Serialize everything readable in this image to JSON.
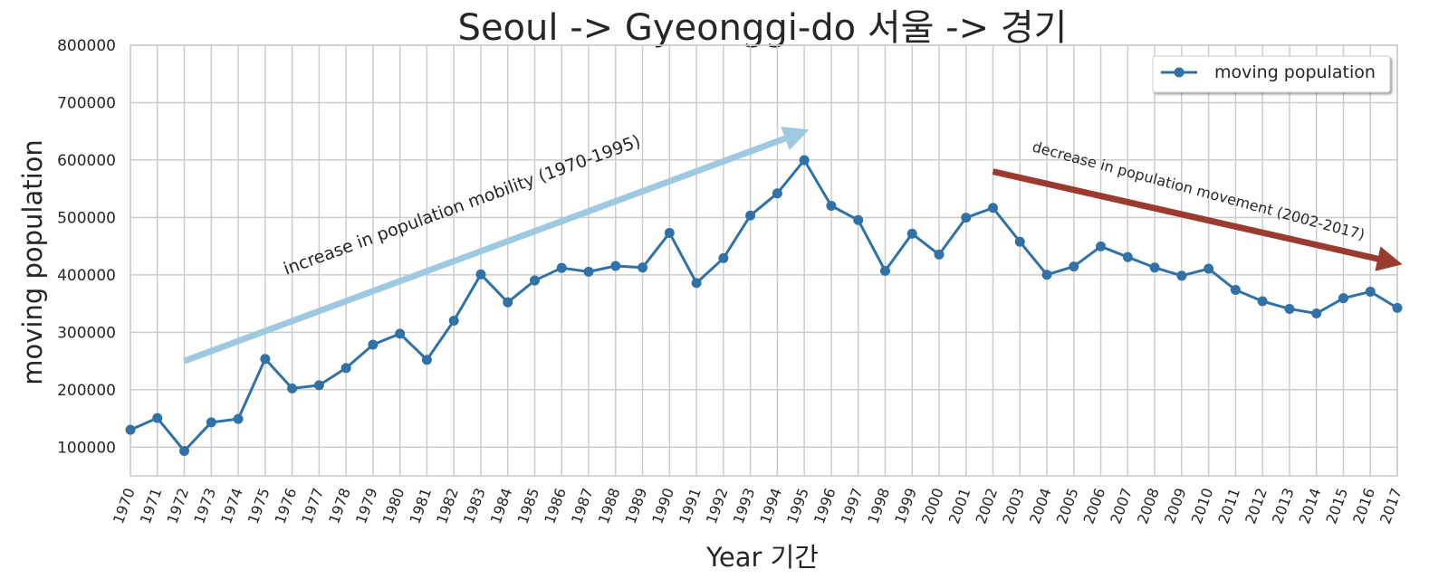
{
  "chart_data": {
    "type": "line",
    "title": "Seoul -> Gyeonggi-do 서울 -> 경기",
    "xlabel": "Year 기간",
    "ylabel": "moving population",
    "ylim": [
      50000,
      800000
    ],
    "yticks": [
      100000,
      200000,
      300000,
      400000,
      500000,
      600000,
      700000,
      800000
    ],
    "x": [
      "1970",
      "1971",
      "1972",
      "1973",
      "1974",
      "1975",
      "1976",
      "1977",
      "1978",
      "1979",
      "1980",
      "1981",
      "1982",
      "1983",
      "1984",
      "1985",
      "1986",
      "1987",
      "1988",
      "1989",
      "1990",
      "1991",
      "1992",
      "1993",
      "1994",
      "1995",
      "1996",
      "1997",
      "1998",
      "1999",
      "2000",
      "2001",
      "2002",
      "2003",
      "2004",
      "2005",
      "2006",
      "2007",
      "2008",
      "2009",
      "2010",
      "2011",
      "2012",
      "2013",
      "2014",
      "2015",
      "2016",
      "2017"
    ],
    "series": [
      {
        "name": "moving population",
        "color": "#3072a8",
        "values": [
          130149,
          150583,
          93333,
          143234,
          149045,
          253705,
          202276,
          207722,
          237684,
          278411,
          297539,
          252073,
          320174,
          400875,
          352238,
          390258,
          412112,
          405522,
          415540,
          412709,
          473155,
          385821,
          429061,
          503475,
          542040,
          599921,
          520332,
          495454,
          407056,
          471642,
          435434,
          499577,
          516765,
          457656,
          400206,
          414621,
          449551,
          431023,
          412745,
          398529,
          410735,
          373771,
          354135,
          340801,
          332785,
          359337,
          370760,
          342433
        ]
      }
    ],
    "legend": {
      "position": "top-right",
      "label": "moving population"
    },
    "grid": true,
    "annotations": [
      {
        "text": "increase in population mobility (1970-1995)",
        "arrow_from": [
          "1972",
          250000
        ],
        "arrow_to": [
          "1995",
          650000
        ],
        "color": "#9ecae1"
      },
      {
        "text": "decrease in population movement (2002-2017)",
        "arrow_from": [
          "2002",
          580000
        ],
        "arrow_to": [
          "2017",
          420000
        ],
        "color": "#9b3a2e"
      }
    ]
  }
}
